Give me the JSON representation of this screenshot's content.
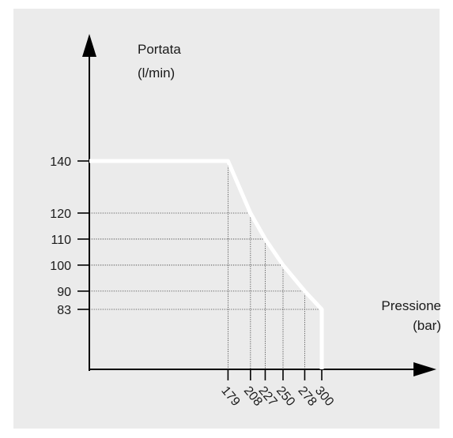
{
  "chart_data": {
    "type": "line",
    "title": "",
    "ylabel_line1": "Portata",
    "ylabel_line2": "(l/min)",
    "xlabel_line1": "Pressione",
    "xlabel_line2": "(bar)",
    "series": [
      {
        "x": [
          0,
          179,
          208,
          227,
          250,
          278,
          300,
          300
        ],
        "y": [
          140,
          140,
          120,
          110,
          100,
          90,
          83,
          0
        ]
      }
    ],
    "x_ticks": [
      179,
      208,
      227,
      250,
      278,
      300
    ],
    "y_ticks": [
      140,
      120,
      110,
      100,
      90,
      83
    ],
    "grid": "dotted guide lines at tick values",
    "line_color": "#ffffff",
    "background_color": "#ebebeb",
    "axis_color": "#000000"
  }
}
